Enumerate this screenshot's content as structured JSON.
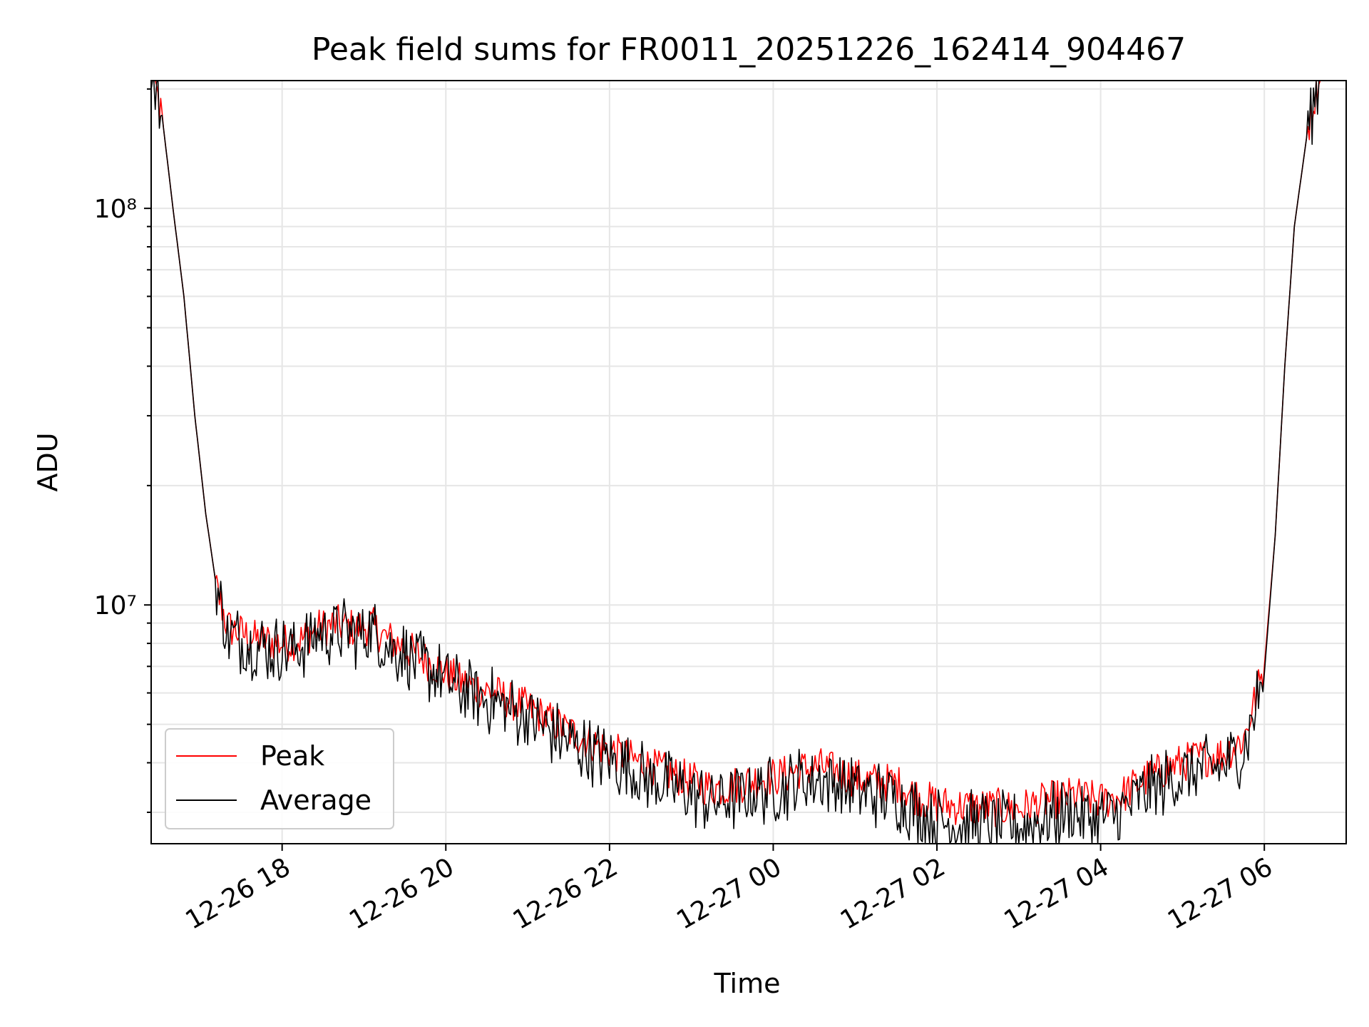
{
  "chart_data": {
    "type": "line",
    "title": "Peak field sums for FR0011_20251226_162414_904467",
    "xlabel": "Time",
    "ylabel": "ADU",
    "yscale": "log",
    "xlim": [
      "2025-12-26 16:24",
      "2025-12-27 07:00"
    ],
    "ylim": [
      2500000.0,
      210000000.0
    ],
    "grid": true,
    "legend_position": "lower-left",
    "x_ticks": [
      {
        "label": "12-26 18",
        "time": "2025-12-26 18:00"
      },
      {
        "label": "12-26 20",
        "time": "2025-12-26 20:00"
      },
      {
        "label": "12-26 22",
        "time": "2025-12-26 22:00"
      },
      {
        "label": "12-27 00",
        "time": "2025-12-27 00:00"
      },
      {
        "label": "12-27 02",
        "time": "2025-12-27 02:00"
      },
      {
        "label": "12-27 04",
        "time": "2025-12-27 04:00"
      },
      {
        "label": "12-27 06",
        "time": "2025-12-27 06:00"
      }
    ],
    "y_ticks": [
      {
        "value": 10000000,
        "label": "10⁷"
      },
      {
        "value": 100000000,
        "label": "10⁸"
      }
    ],
    "series": [
      {
        "name": "Peak",
        "color": "#ff0000",
        "noise": 0.05,
        "points": [
          [
            "2025-12-26 16:24",
            230000000
          ],
          [
            "2025-12-26 16:33",
            160000000
          ],
          [
            "2025-12-26 16:40",
            100000000
          ],
          [
            "2025-12-26 16:48",
            60000000
          ],
          [
            "2025-12-26 16:56",
            30000000
          ],
          [
            "2025-12-26 17:04",
            17000000
          ],
          [
            "2025-12-26 17:12",
            11000000
          ],
          [
            "2025-12-26 17:20",
            8800000
          ],
          [
            "2025-12-26 17:40",
            8200000
          ],
          [
            "2025-12-26 18:00",
            8000000
          ],
          [
            "2025-12-26 18:15",
            8200000
          ],
          [
            "2025-12-26 18:25",
            8700000
          ],
          [
            "2025-12-26 18:40",
            8950000
          ],
          [
            "2025-12-26 18:55",
            8700000
          ],
          [
            "2025-12-26 19:05",
            8900000
          ],
          [
            "2025-12-26 19:15",
            8300000
          ],
          [
            "2025-12-26 19:30",
            7800000
          ],
          [
            "2025-12-26 19:50",
            7100000
          ],
          [
            "2025-12-26 20:10",
            6400000
          ],
          [
            "2025-12-26 20:35",
            6000000
          ],
          [
            "2025-12-26 21:00",
            5500000
          ],
          [
            "2025-12-26 21:30",
            4800000
          ],
          [
            "2025-12-26 22:00",
            4300000
          ],
          [
            "2025-12-26 22:30",
            3900000
          ],
          [
            "2025-12-26 23:00",
            3600000
          ],
          [
            "2025-12-26 23:15",
            3450000
          ],
          [
            "2025-12-26 23:30",
            3500000
          ],
          [
            "2025-12-26 23:50",
            3650000
          ],
          [
            "2025-12-27 00:05",
            3700000
          ],
          [
            "2025-12-27 00:20",
            3850000
          ],
          [
            "2025-12-27 00:35",
            3900000
          ],
          [
            "2025-12-27 00:50",
            3750000
          ],
          [
            "2025-12-27 01:10",
            3600000
          ],
          [
            "2025-12-27 01:30",
            3550000
          ],
          [
            "2025-12-27 01:45",
            3300000
          ],
          [
            "2025-12-27 02:00",
            3150000
          ],
          [
            "2025-12-27 02:20",
            3100000
          ],
          [
            "2025-12-27 02:45",
            3080000
          ],
          [
            "2025-12-27 03:00",
            3050000
          ],
          [
            "2025-12-27 03:20",
            3200000
          ],
          [
            "2025-12-27 03:40",
            3300000
          ],
          [
            "2025-12-27 04:00",
            3200000
          ],
          [
            "2025-12-27 04:15",
            3300000
          ],
          [
            "2025-12-27 04:30",
            3600000
          ],
          [
            "2025-12-27 04:50",
            3900000
          ],
          [
            "2025-12-27 05:10",
            4100000
          ],
          [
            "2025-12-27 05:30",
            4200000
          ],
          [
            "2025-12-27 05:45",
            4600000
          ],
          [
            "2025-12-27 06:00",
            7000000
          ],
          [
            "2025-12-27 06:08",
            15000000
          ],
          [
            "2025-12-27 06:15",
            40000000
          ],
          [
            "2025-12-27 06:22",
            90000000
          ],
          [
            "2025-12-27 06:32",
            160000000
          ],
          [
            "2025-12-27 06:42",
            230000000
          ]
        ]
      },
      {
        "name": "Average",
        "color": "#000000",
        "noise": 0.07,
        "points": [
          [
            "2025-12-26 16:24",
            230000000
          ],
          [
            "2025-12-26 16:33",
            160000000
          ],
          [
            "2025-12-26 16:40",
            100000000
          ],
          [
            "2025-12-26 16:48",
            60000000
          ],
          [
            "2025-12-26 16:56",
            30000000
          ],
          [
            "2025-12-26 17:04",
            17000000
          ],
          [
            "2025-12-26 17:12",
            11000000
          ],
          [
            "2025-12-26 17:20",
            8400000
          ],
          [
            "2025-12-26 17:40",
            7900000
          ],
          [
            "2025-12-26 18:00",
            7700000
          ],
          [
            "2025-12-26 18:15",
            7900000
          ],
          [
            "2025-12-26 18:25",
            8400000
          ],
          [
            "2025-12-26 18:40",
            8650000
          ],
          [
            "2025-12-26 18:55",
            8400000
          ],
          [
            "2025-12-26 19:05",
            8600000
          ],
          [
            "2025-12-26 19:15",
            8000000
          ],
          [
            "2025-12-26 19:30",
            7500000
          ],
          [
            "2025-12-26 19:50",
            6800000
          ],
          [
            "2025-12-26 20:10",
            6100000
          ],
          [
            "2025-12-26 20:35",
            5700000
          ],
          [
            "2025-12-26 21:00",
            5200000
          ],
          [
            "2025-12-26 21:30",
            4500000
          ],
          [
            "2025-12-26 22:00",
            4050000
          ],
          [
            "2025-12-26 22:30",
            3650000
          ],
          [
            "2025-12-26 23:00",
            3350000
          ],
          [
            "2025-12-26 23:15",
            3200000
          ],
          [
            "2025-12-26 23:30",
            3250000
          ],
          [
            "2025-12-26 23:50",
            3400000
          ],
          [
            "2025-12-27 00:05",
            3450000
          ],
          [
            "2025-12-27 00:20",
            3600000
          ],
          [
            "2025-12-27 00:35",
            3650000
          ],
          [
            "2025-12-27 00:50",
            3500000
          ],
          [
            "2025-12-27 01:10",
            3350000
          ],
          [
            "2025-12-27 01:30",
            3300000
          ],
          [
            "2025-12-27 01:45",
            3000000
          ],
          [
            "2025-12-27 02:00",
            2850000
          ],
          [
            "2025-12-27 02:20",
            2800000
          ],
          [
            "2025-12-27 02:45",
            2780000
          ],
          [
            "2025-12-27 03:00",
            2760000
          ],
          [
            "2025-12-27 03:20",
            2900000
          ],
          [
            "2025-12-27 03:40",
            3000000
          ],
          [
            "2025-12-27 04:00",
            2900000
          ],
          [
            "2025-12-27 04:15",
            3000000
          ],
          [
            "2025-12-27 04:30",
            3300000
          ],
          [
            "2025-12-27 04:50",
            3600000
          ],
          [
            "2025-12-27 05:10",
            3800000
          ],
          [
            "2025-12-27 05:30",
            3900000
          ],
          [
            "2025-12-27 05:45",
            4300000
          ],
          [
            "2025-12-27 06:00",
            6700000
          ],
          [
            "2025-12-27 06:08",
            15000000
          ],
          [
            "2025-12-27 06:15",
            40000000
          ],
          [
            "2025-12-27 06:22",
            90000000
          ],
          [
            "2025-12-27 06:32",
            160000000
          ],
          [
            "2025-12-27 06:42",
            230000000
          ]
        ]
      }
    ],
    "legend": [
      {
        "label": "Peak",
        "color": "#ff0000"
      },
      {
        "label": "Average",
        "color": "#000000"
      }
    ]
  }
}
